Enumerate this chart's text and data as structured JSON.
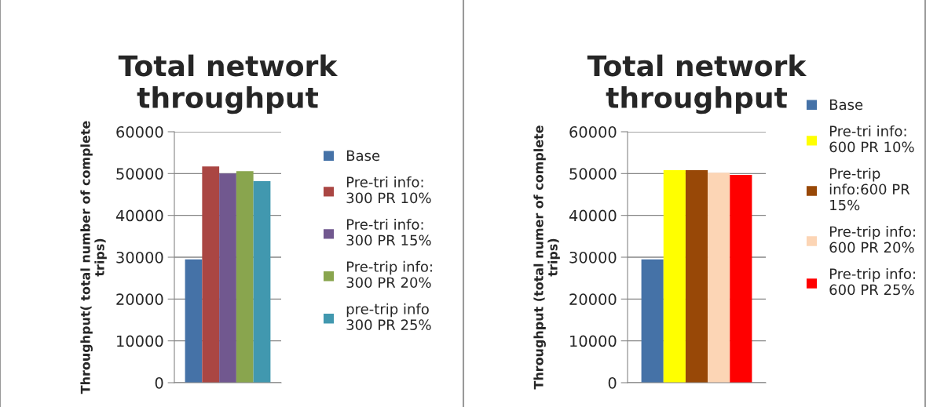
{
  "chart_data": [
    {
      "type": "bar",
      "title": "Total network\nthroughput",
      "ylabel": "Throughput( total number of complete\ntrips)",
      "categories": [
        null
      ],
      "ylim": [
        0,
        60000
      ],
      "yticks": [
        0,
        10000,
        20000,
        30000,
        40000,
        50000,
        60000
      ],
      "grid": "y",
      "legend": "right",
      "series": [
        {
          "name": "Base",
          "color": "#4572a7",
          "values": [
            29500
          ]
        },
        {
          "name": "Pre-tri info:\n300 PR 10%",
          "color": "#aa4643",
          "values": [
            51700
          ]
        },
        {
          "name": "Pre-tri info:\n300 PR 15%",
          "color": "#71588f",
          "values": [
            50000
          ]
        },
        {
          "name": "Pre-trip info:\n300 PR 20%",
          "color": "#89a54e",
          "values": [
            50600
          ]
        },
        {
          "name": "pre-trip info\n300 PR 25%",
          "color": "#4198af",
          "values": [
            48200
          ]
        }
      ]
    },
    {
      "type": "bar",
      "title": "Total network\nthroughput",
      "ylabel": "Throughput (total numer of complete\ntrips)",
      "categories": [
        null
      ],
      "ylim": [
        0,
        60000
      ],
      "yticks": [
        0,
        10000,
        20000,
        30000,
        40000,
        50000,
        60000
      ],
      "grid": "y",
      "legend": "right",
      "series": [
        {
          "name": "Base",
          "color": "#4572a7",
          "values": [
            29500
          ]
        },
        {
          "name": "Pre-tri info:\n600 PR 10%",
          "color": "#ffff00",
          "values": [
            50800
          ]
        },
        {
          "name": "Pre-trip\ninfo:600 PR\n15%",
          "color": "#984807",
          "values": [
            50800
          ]
        },
        {
          "name": "Pre-trip info:\n600 PR 20%",
          "color": "#fcd5b5",
          "values": [
            50200
          ]
        },
        {
          "name": "Pre-trip info:\n600 PR 25%",
          "color": "#ff0000",
          "values": [
            49700
          ]
        }
      ]
    }
  ]
}
